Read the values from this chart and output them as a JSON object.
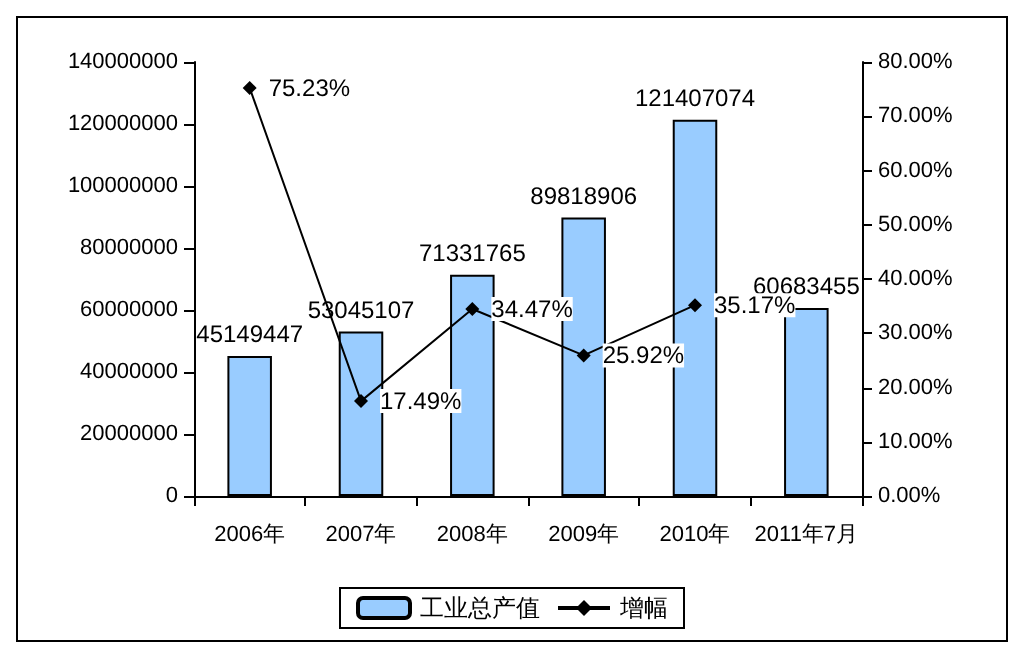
{
  "chart_data": {
    "type": "bar",
    "categories": [
      "2006年",
      "2007年",
      "2008年",
      "2009年",
      "2010年",
      "2011年7月"
    ],
    "series": [
      {
        "name": "工业总产值",
        "color": "#99ccff",
        "values": [
          45149447,
          53045107,
          71331765,
          89818906,
          121407074,
          60683455
        ]
      },
      {
        "name": "增幅",
        "type": "line",
        "axis": "y2",
        "color": "#000000",
        "marker": "diamond",
        "values": [
          75.23,
          17.49,
          34.47,
          25.92,
          35.17,
          null
        ],
        "value_labels": [
          "75.23%",
          "17.49%",
          "34.47%",
          "25.92%",
          "35.17%",
          null
        ]
      }
    ],
    "data_labels": true,
    "ylim": [
      0,
      140000000
    ],
    "yticks": [
      0,
      20000000,
      40000000,
      60000000,
      80000000,
      100000000,
      120000000,
      140000000
    ],
    "y2lim": [
      0,
      80
    ],
    "y2ticks": [
      {
        "value": 0,
        "label": "0.00%"
      },
      {
        "value": 10,
        "label": "10.00%"
      },
      {
        "value": 20,
        "label": "20.00%"
      },
      {
        "value": 30,
        "label": "30.00%"
      },
      {
        "value": 40,
        "label": "40.00%"
      },
      {
        "value": 50,
        "label": "50.00%"
      },
      {
        "value": 60,
        "label": "60.00%"
      },
      {
        "value": 70,
        "label": "70.00%"
      },
      {
        "value": 80,
        "label": "80.00%"
      }
    ],
    "grid": false,
    "legend": "bottom"
  }
}
